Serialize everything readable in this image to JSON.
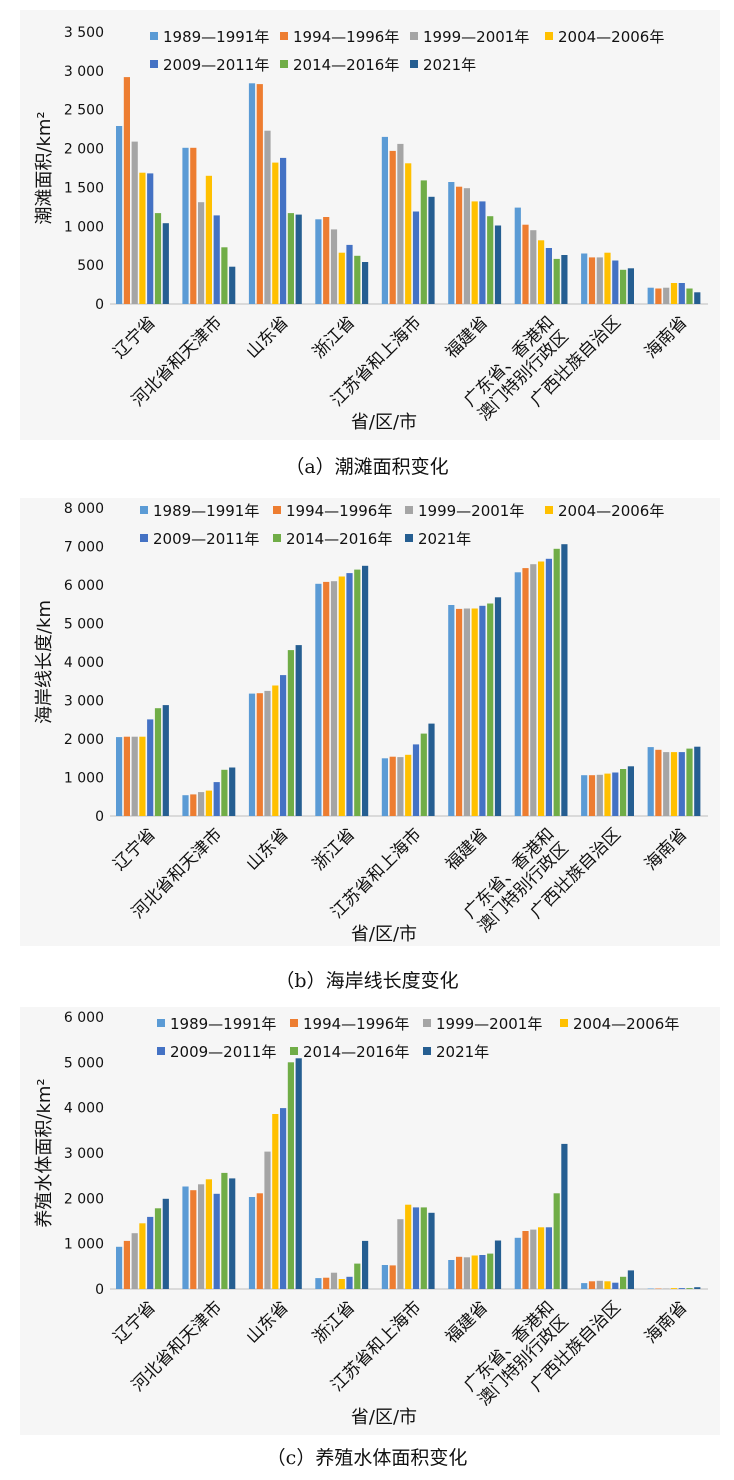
{
  "legend_labels": [
    "1989—1991年",
    "1994—1996年",
    "1999—2001年",
    "2004—2006年",
    "2009—2011年",
    "2014—2016年",
    "2021年"
  ],
  "series_colors": [
    "#5b9bd5",
    "#ed7d31",
    "#a5a5a5",
    "#ffc000",
    "#4472c4",
    "#70ad47",
    "#255e91"
  ],
  "chart_data": [
    {
      "type": "bar",
      "caption": "（a）潮滩面积变化",
      "ylabel": "潮滩面积/km²",
      "xlabel": "省/区/市",
      "ylim": [
        0,
        3500
      ],
      "yticks": [
        "0",
        "500",
        "1 000",
        "1 500",
        "2 000",
        "2 500",
        "3 000",
        "3 500"
      ],
      "legend_position": "top",
      "categories": [
        "辽宁省",
        "河北省和天津市",
        "山东省",
        "浙江省",
        "江苏省和上海市",
        "福建省",
        "广东省、香港和\n澳门特别行政区",
        "广西壮族自治区",
        "海南省"
      ],
      "series": [
        {
          "name": "1989—1991年",
          "values": [
            2290,
            2010,
            2840,
            1090,
            2150,
            1570,
            1240,
            650,
            210
          ]
        },
        {
          "name": "1994—1996年",
          "values": [
            2920,
            2010,
            2830,
            1120,
            1970,
            1510,
            1020,
            600,
            200
          ]
        },
        {
          "name": "1999—2001年",
          "values": [
            2090,
            1310,
            2230,
            960,
            2060,
            1490,
            950,
            600,
            210
          ]
        },
        {
          "name": "2004—2006年",
          "values": [
            1690,
            1650,
            1820,
            660,
            1810,
            1320,
            820,
            660,
            270
          ]
        },
        {
          "name": "2009—2011年",
          "values": [
            1680,
            1140,
            1880,
            760,
            1190,
            1320,
            720,
            560,
            270
          ]
        },
        {
          "name": "2014—2016年",
          "values": [
            1170,
            730,
            1170,
            620,
            1590,
            1130,
            580,
            440,
            200
          ]
        },
        {
          "name": "2021年",
          "values": [
            1040,
            480,
            1150,
            540,
            1380,
            1010,
            630,
            460,
            150
          ]
        }
      ]
    },
    {
      "type": "bar",
      "caption": "（b）海岸线长度变化",
      "ylabel": "海岸线长度/km",
      "xlabel": "省/区/市",
      "ylim": [
        0,
        8000
      ],
      "yticks": [
        "0",
        "1 000",
        "2 000",
        "3 000",
        "4 000",
        "5 000",
        "6 000",
        "7 000",
        "8 000"
      ],
      "legend_position": "top",
      "categories": [
        "辽宁省",
        "河北省和天津市",
        "山东省",
        "浙江省",
        "江苏省和上海市",
        "福建省",
        "广东省、香港和\n澳门特别行政区",
        "广西壮族自治区",
        "海南省"
      ],
      "series": [
        {
          "name": "1989—1991年",
          "values": [
            2050,
            540,
            3180,
            6030,
            1500,
            5480,
            6330,
            1060,
            1790
          ]
        },
        {
          "name": "1994—1996年",
          "values": [
            2060,
            560,
            3190,
            6080,
            1540,
            5380,
            6440,
            1060,
            1720
          ]
        },
        {
          "name": "1999—2001年",
          "values": [
            2060,
            620,
            3250,
            6100,
            1530,
            5390,
            6540,
            1070,
            1660
          ]
        },
        {
          "name": "2004—2006年",
          "values": [
            2060,
            660,
            3390,
            6220,
            1590,
            5390,
            6610,
            1100,
            1660
          ]
        },
        {
          "name": "2009—2011年",
          "values": [
            2510,
            880,
            3660,
            6310,
            1860,
            5460,
            6680,
            1130,
            1660
          ]
        },
        {
          "name": "2014—2016年",
          "values": [
            2800,
            1200,
            4310,
            6400,
            2140,
            5520,
            6940,
            1220,
            1750
          ]
        },
        {
          "name": "2021年",
          "values": [
            2880,
            1260,
            4440,
            6500,
            2400,
            5680,
            7060,
            1290,
            1800
          ]
        }
      ]
    },
    {
      "type": "bar",
      "caption": "（c）养殖水体面积变化",
      "ylabel": "养殖水体面积/km²",
      "xlabel": "省/区/市",
      "ylim": [
        0,
        6000
      ],
      "yticks": [
        "0",
        "1 000",
        "2 000",
        "3 000",
        "4 000",
        "5 000",
        "6 000"
      ],
      "legend_position": "top",
      "categories": [
        "辽宁省",
        "河北省和天津市",
        "山东省",
        "浙江省",
        "江苏省和上海市",
        "福建省",
        "广东省、香港和\n澳门特别行政区",
        "广西壮族自治区",
        "海南省"
      ],
      "series": [
        {
          "name": "1989—1991年",
          "values": [
            930,
            2260,
            2030,
            240,
            530,
            640,
            1130,
            130,
            10
          ]
        },
        {
          "name": "1994—1996年",
          "values": [
            1060,
            2180,
            2110,
            250,
            520,
            710,
            1280,
            170,
            10
          ]
        },
        {
          "name": "1999—2001年",
          "values": [
            1230,
            2310,
            3030,
            360,
            1540,
            700,
            1310,
            180,
            10
          ]
        },
        {
          "name": "2004—2006年",
          "values": [
            1450,
            2420,
            3860,
            220,
            1860,
            740,
            1360,
            170,
            20
          ]
        },
        {
          "name": "2009—2011年",
          "values": [
            1590,
            2100,
            3990,
            270,
            1800,
            750,
            1360,
            140,
            20
          ]
        },
        {
          "name": "2014—2016年",
          "values": [
            1780,
            2560,
            5000,
            560,
            1800,
            780,
            2110,
            270,
            20
          ]
        },
        {
          "name": "2021年",
          "values": [
            1990,
            2440,
            5090,
            1060,
            1680,
            1070,
            3200,
            410,
            40
          ]
        }
      ]
    }
  ]
}
